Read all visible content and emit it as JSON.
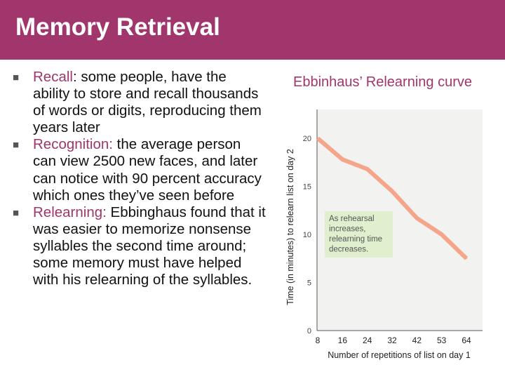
{
  "slide": {
    "title": "Memory Retrieval",
    "accent_color": "#a0366b",
    "bullet_icon": "square-bullet-icon"
  },
  "bullets": [
    {
      "term": "Recall",
      "text": ": some people, have the ability to store and recall thousands of words or digits, reproducing them years later"
    },
    {
      "term": "Recognition:",
      "text": " the average person can view 2500 new faces, and later can notice with 90 percent accuracy which ones they’ve seen before"
    },
    {
      "term": "Relearning:",
      "text": " Ebbinghaus found that it was easier to memorize nonsense syllables the second time around; some memory must have helped with his relearning of the syllables."
    }
  ],
  "chart_heading": "Ebbinhaus’ Relearning curve",
  "chart_data": {
    "type": "line",
    "x": [
      "8",
      "16",
      "24",
      "32",
      "42",
      "53",
      "64"
    ],
    "y": [
      20,
      17.8,
      16.8,
      14.5,
      11.7,
      10,
      7.5
    ],
    "xlabel": "Number of repetitions of list on day 1",
    "ylabel": "Time (in minutes) to relearn list on day 2",
    "ylim": [
      0,
      23
    ],
    "yticks": [
      0,
      5,
      10,
      15,
      20
    ],
    "annotation": [
      "As rehearsal",
      "increases,",
      "relearning time",
      "decreases."
    ],
    "line_color": "#f4a58a",
    "plot_background": "#f2f2f0",
    "annotation_background": "#e0efce",
    "grid": false
  }
}
